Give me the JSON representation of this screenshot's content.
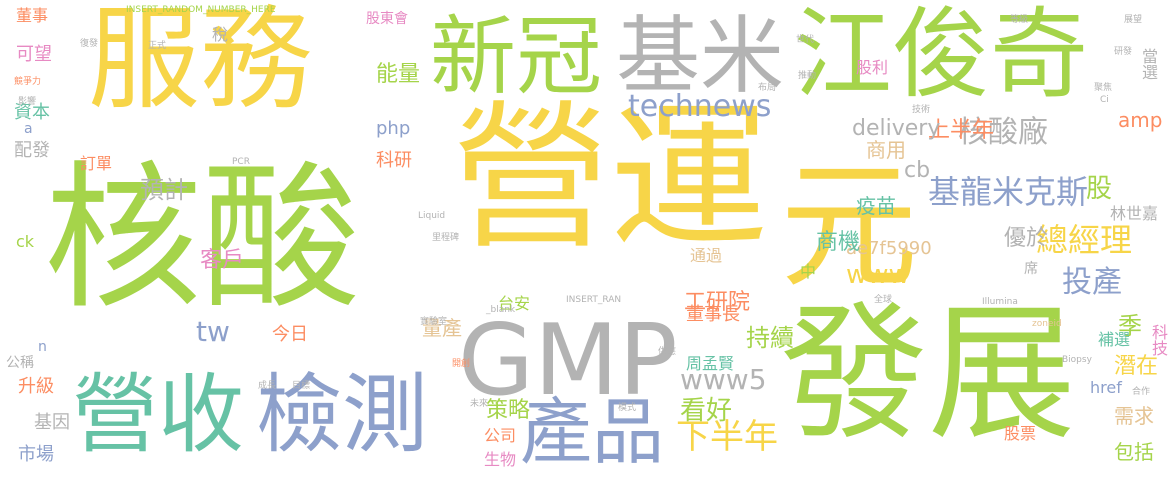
{
  "colors": {
    "yellow": "#f7d548",
    "green": "#a5d44a",
    "gray": "#b3b3b3",
    "blue": "#8da0cb",
    "teal": "#66c2a5",
    "orange": "#fc8d62",
    "pink": "#e78ac3",
    "tan": "#e5c494"
  },
  "words": {
    "w1": "服務",
    "w2": "營運",
    "w3": "核酸",
    "w4": "發展",
    "w5": "元",
    "w6": "新冠",
    "w7": "基米",
    "w8": "江俊奇",
    "w9": "GMP",
    "w10": "營收",
    "w11": "檢測",
    "w12": "產品",
    "w13": "technews",
    "w14": "www5",
    "w15": "www",
    "w16": "基龍米克斯",
    "w17": "核酸廠",
    "w18": "上半年",
    "w19": "總經理",
    "w20": "投產",
    "w21": "優於",
    "w22": "下半年",
    "w23": "看好",
    "w24": "持續",
    "w25": "工研院",
    "w26": "delivery",
    "w27": "ae7f5990",
    "w28": "疫苗",
    "w29": "商用",
    "w30": "商機",
    "w31": "股利",
    "w32": "股",
    "w33": "amp",
    "w34": "當選",
    "w35": "季",
    "w36": "潛在",
    "w37": "需求",
    "w38": "包括",
    "w39": "林世嘉",
    "w40": "科技",
    "w41": "href",
    "w42": "周孟賢",
    "w43": "董事長",
    "w44": "通過",
    "w45": "策略",
    "w46": "公司",
    "w47": "生物",
    "w48": "量產",
    "w49": "台安",
    "w50": "今日",
    "w51": "tw",
    "w52": "客戶",
    "w53": "預計",
    "w54": "科研",
    "w55": "php",
    "w56": "能量",
    "w57": "稅",
    "w58": "訂單",
    "w59": "資本",
    "w60": "配發",
    "w61": "可望",
    "w62": "董事",
    "w63": "升級",
    "w64": "基因",
    "w65": "市場",
    "w66": "公稱",
    "w67": "ck",
    "w68": "股東會",
    "w69": "INSERT_RANDOM_NUMBER_HERE",
    "w70": "cb",
    "w71": "中",
    "w72": "股票",
    "w73": "席",
    "w74": "補選",
    "w75": "a",
    "w76": "n",
    "w77": "正式",
    "w78": "復發",
    "w79": "競爭力",
    "w80": "影響",
    "w81": "PCR",
    "w82": "INSERT_RAN",
    "w83": "Liquid",
    "w84": "Illumina",
    "w85": "Biopsy",
    "w86": "Ci",
    "w87": "實驗室",
    "w88": "開創",
    "w89": "成長",
    "w90": "目標",
    "w91": "研發",
    "w92": "展望",
    "w93": "等級",
    "w94": "世代",
    "w95": "布局",
    "w96": "里程碑",
    "w97": "供應",
    "w98": "全球",
    "w99": "_blank",
    "w100": "zoneid",
    "w101": "合作",
    "w102": "未來",
    "w103": "模式",
    "w104": "技術",
    "w105": "推動",
    "w106": "聚焦"
  }
}
